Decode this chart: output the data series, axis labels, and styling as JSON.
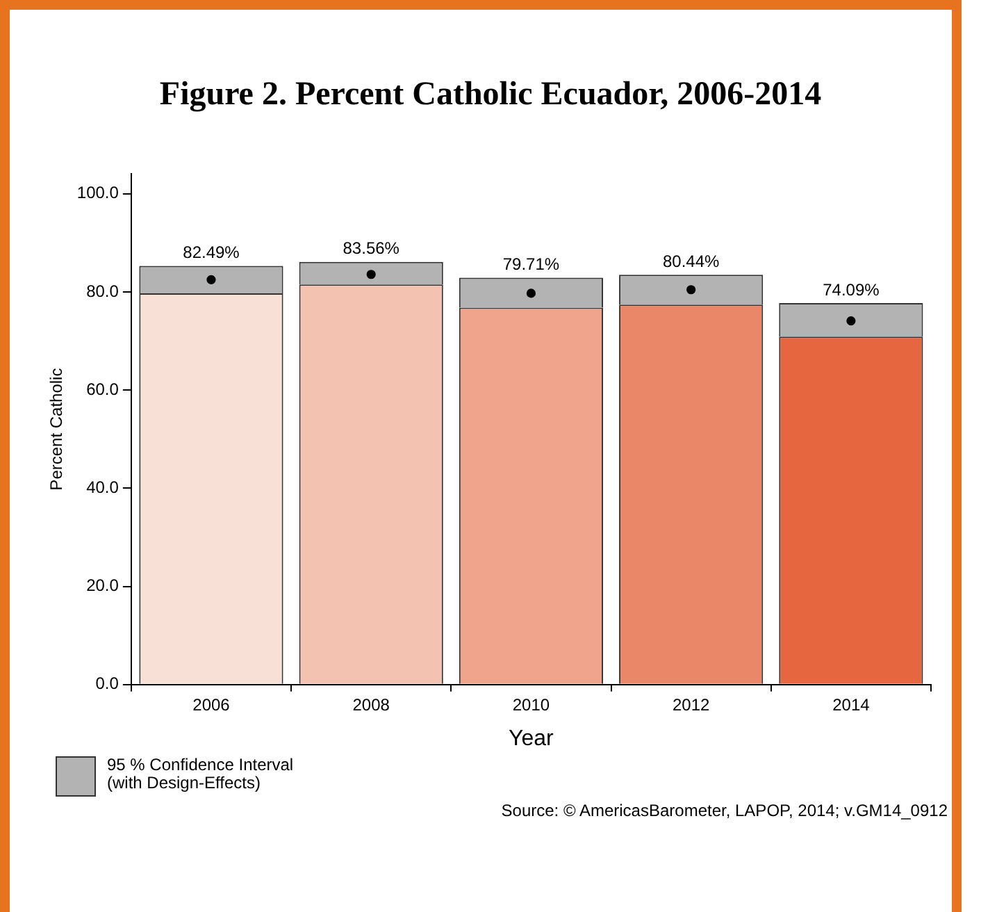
{
  "chart_data": {
    "type": "bar",
    "title": "Figure 2. Percent Catholic Ecuador, 2006-2014",
    "xlabel": "Year",
    "ylabel": "Percent Catholic",
    "categories": [
      "2006",
      "2008",
      "2010",
      "2012",
      "2014"
    ],
    "stacked": true,
    "series": [
      {
        "colors": [
          "#f9e0d6",
          "#f4c2b0",
          "#f0a48b",
          "#eb8769",
          "#e6663f"
        ],
        "values": [
          79.7,
          81.5,
          76.8,
          77.4,
          70.9
        ]
      },
      {
        "name": "95 % Confidence Interval (with Design-Effects)",
        "color": "#b3b3b3",
        "values": [
          5.6,
          4.6,
          6.1,
          6.1,
          6.8
        ]
      },
      {
        "type": "scatter",
        "color": "#000000",
        "values": [
          82.49,
          83.56,
          79.71,
          80.44,
          74.09
        ],
        "value_labels": [
          "82.49%",
          "83.56%",
          "79.71%",
          "80.44%",
          "74.09%"
        ]
      }
    ],
    "marker": "circle",
    "ylim": [
      0,
      104
    ],
    "yticks": [
      {
        "value": 0,
        "label": "0.0"
      },
      {
        "value": 20,
        "label": "20.0"
      },
      {
        "value": 40,
        "label": "40.0"
      },
      {
        "value": 60,
        "label": "60.0"
      },
      {
        "value": 80,
        "label": "80.0"
      },
      {
        "value": 100,
        "label": "100.0"
      }
    ],
    "grid": false,
    "legend": "bottom left",
    "annotations": [
      "Source: © AmericasBarometer, LAPOP, 2014; v.GM14_0912"
    ]
  }
}
